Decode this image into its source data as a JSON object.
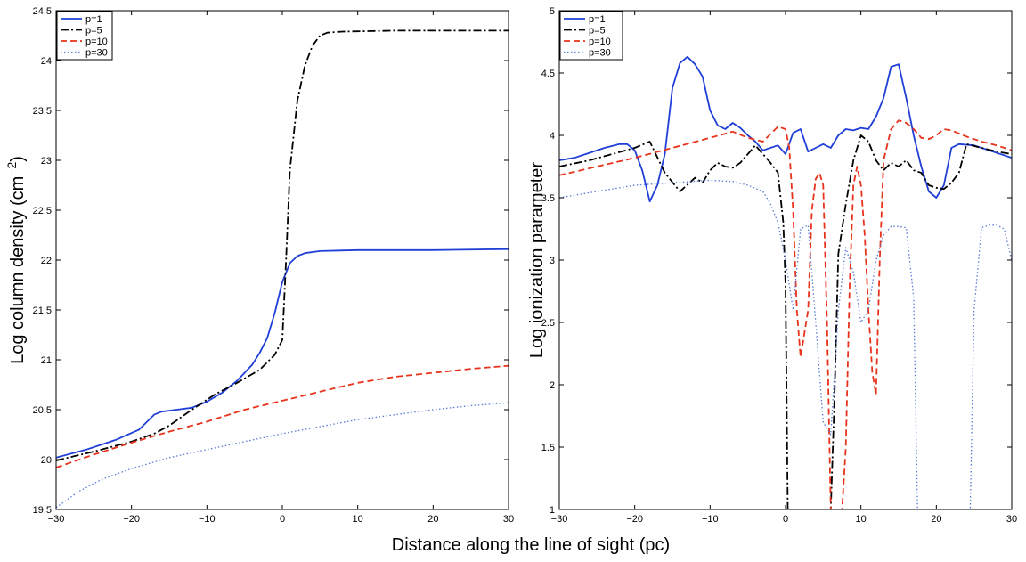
{
  "figure": {
    "xlabel": "Distance along the line of sight (pc)"
  },
  "chart_data": [
    {
      "type": "line",
      "ylabel_main": "Log column density (cm",
      "ylabel_sup": "−2",
      "ylabel_close": ")",
      "xlim": [
        -30,
        30
      ],
      "ylim": [
        19.5,
        24.5
      ],
      "xticks": [
        -30,
        -20,
        -10,
        0,
        10,
        20,
        30
      ],
      "xtick_labels": [
        "−30",
        "−20",
        "−10",
        "0",
        "10",
        "20",
        "30"
      ],
      "yticks": [
        19.5,
        20,
        20.5,
        21,
        21.5,
        22,
        22.5,
        23,
        23.5,
        24,
        24.5
      ],
      "ytick_labels": [
        "19.5",
        "20",
        "20.5",
        "21",
        "21.5",
        "22",
        "22.5",
        "23",
        "23.5",
        "24",
        "24.5"
      ],
      "legend_position": "top-left",
      "series": [
        {
          "name": "p=1",
          "color": "#1f3fd6",
          "dash": "solid",
          "points": [
            [
              -30,
              20.02
            ],
            [
              -26,
              20.1
            ],
            [
              -22,
              20.2
            ],
            [
              -19,
              20.3
            ],
            [
              -17,
              20.45
            ],
            [
              -16,
              20.48
            ],
            [
              -14,
              20.5
            ],
            [
              -12,
              20.52
            ],
            [
              -10,
              20.58
            ],
            [
              -8,
              20.67
            ],
            [
              -6,
              20.79
            ],
            [
              -4,
              20.95
            ],
            [
              -3,
              21.07
            ],
            [
              -2,
              21.22
            ],
            [
              -1,
              21.47
            ],
            [
              0,
              21.78
            ],
            [
              1,
              21.97
            ],
            [
              2,
              22.04
            ],
            [
              3,
              22.07
            ],
            [
              5,
              22.09
            ],
            [
              10,
              22.1
            ],
            [
              20,
              22.1
            ],
            [
              30,
              22.11
            ]
          ]
        },
        {
          "name": "p=5",
          "color": "#000000",
          "dash": "dashdot",
          "points": [
            [
              -30,
              19.99
            ],
            [
              -25,
              20.08
            ],
            [
              -20,
              20.18
            ],
            [
              -17,
              20.26
            ],
            [
              -15,
              20.34
            ],
            [
              -12,
              20.5
            ],
            [
              -9,
              20.65
            ],
            [
              -6,
              20.77
            ],
            [
              -3,
              20.9
            ],
            [
              -1,
              21.05
            ],
            [
              0,
              21.2
            ],
            [
              0.5,
              22.0
            ],
            [
              1,
              22.9
            ],
            [
              2,
              23.6
            ],
            [
              3,
              23.95
            ],
            [
              4,
              24.15
            ],
            [
              5,
              24.25
            ],
            [
              6,
              24.28
            ],
            [
              8,
              24.29
            ],
            [
              15,
              24.3
            ],
            [
              30,
              24.3
            ]
          ]
        },
        {
          "name": "p=10",
          "color": "#e8331c",
          "dash": "dashed",
          "points": [
            [
              -30,
              19.92
            ],
            [
              -25,
              20.05
            ],
            [
              -20,
              20.17
            ],
            [
              -15,
              20.28
            ],
            [
              -10,
              20.38
            ],
            [
              -5,
              20.5
            ],
            [
              0,
              20.59
            ],
            [
              5,
              20.68
            ],
            [
              10,
              20.77
            ],
            [
              15,
              20.83
            ],
            [
              20,
              20.87
            ],
            [
              25,
              20.91
            ],
            [
              30,
              20.94
            ]
          ]
        },
        {
          "name": "p=30",
          "color": "#5a7bd8",
          "dash": "dotted",
          "points": [
            [
              -30,
              19.52
            ],
            [
              -27,
              19.68
            ],
            [
              -24,
              19.8
            ],
            [
              -20,
              19.91
            ],
            [
              -15,
              20.02
            ],
            [
              -10,
              20.1
            ],
            [
              -5,
              20.18
            ],
            [
              0,
              20.26
            ],
            [
              5,
              20.33
            ],
            [
              10,
              20.4
            ],
            [
              15,
              20.45
            ],
            [
              20,
              20.5
            ],
            [
              25,
              20.54
            ],
            [
              30,
              20.57
            ]
          ]
        }
      ]
    },
    {
      "type": "line",
      "ylabel": "Log ionization parameter",
      "xlim": [
        -30,
        30
      ],
      "ylim": [
        1,
        5
      ],
      "xticks": [
        -30,
        -20,
        -10,
        0,
        10,
        20,
        30
      ],
      "xtick_labels": [
        "−30",
        "−20",
        "−10",
        "0",
        "10",
        "20",
        "30"
      ],
      "yticks": [
        1,
        1.5,
        2,
        2.5,
        3,
        3.5,
        4,
        4.5,
        5
      ],
      "ytick_labels": [
        "1",
        "1.5",
        "2",
        "2.5",
        "3",
        "3.5",
        "4",
        "4.5",
        "5"
      ],
      "legend_position": "top-left",
      "series": [
        {
          "name": "p=1",
          "color": "#1f3fd6",
          "dash": "solid",
          "points": [
            [
              -30,
              3.8
            ],
            [
              -28,
              3.82
            ],
            [
              -26,
              3.86
            ],
            [
              -24,
              3.9
            ],
            [
              -22,
              3.93
            ],
            [
              -21,
              3.93
            ],
            [
              -20,
              3.88
            ],
            [
              -19,
              3.72
            ],
            [
              -18,
              3.47
            ],
            [
              -17,
              3.6
            ],
            [
              -16,
              3.85
            ],
            [
              -15,
              4.38
            ],
            [
              -14,
              4.58
            ],
            [
              -13,
              4.63
            ],
            [
              -12,
              4.57
            ],
            [
              -11,
              4.47
            ],
            [
              -10,
              4.2
            ],
            [
              -9,
              4.08
            ],
            [
              -8,
              4.05
            ],
            [
              -7,
              4.1
            ],
            [
              -6,
              4.06
            ],
            [
              -5,
              4.0
            ],
            [
              -4,
              3.95
            ],
            [
              -3,
              3.88
            ],
            [
              -2,
              3.9
            ],
            [
              -1,
              3.92
            ],
            [
              0,
              3.85
            ],
            [
              1,
              4.02
            ],
            [
              2,
              4.05
            ],
            [
              3,
              3.87
            ],
            [
              4,
              3.9
            ],
            [
              5,
              3.93
            ],
            [
              6,
              3.9
            ],
            [
              7,
              4.0
            ],
            [
              8,
              4.05
            ],
            [
              9,
              4.04
            ],
            [
              10,
              4.06
            ],
            [
              11,
              4.05
            ],
            [
              12,
              4.15
            ],
            [
              13,
              4.3
            ],
            [
              14,
              4.55
            ],
            [
              15,
              4.57
            ],
            [
              16,
              4.3
            ],
            [
              17,
              4.0
            ],
            [
              18,
              3.75
            ],
            [
              19,
              3.55
            ],
            [
              20,
              3.5
            ],
            [
              21,
              3.6
            ],
            [
              22,
              3.9
            ],
            [
              23,
              3.93
            ],
            [
              25,
              3.92
            ],
            [
              27,
              3.88
            ],
            [
              30,
              3.82
            ]
          ]
        },
        {
          "name": "p=5",
          "color": "#000000",
          "dash": "dashdot",
          "points": [
            [
              -30,
              3.75
            ],
            [
              -26,
              3.8
            ],
            [
              -23,
              3.85
            ],
            [
              -20,
              3.9
            ],
            [
              -18,
              3.95
            ],
            [
              -16,
              3.7
            ],
            [
              -14,
              3.55
            ],
            [
              -12,
              3.66
            ],
            [
              -11,
              3.62
            ],
            [
              -10,
              3.72
            ],
            [
              -9,
              3.78
            ],
            [
              -8,
              3.75
            ],
            [
              -7,
              3.74
            ],
            [
              -6,
              3.78
            ],
            [
              -5,
              3.85
            ],
            [
              -4,
              3.92
            ],
            [
              -3,
              3.85
            ],
            [
              -2,
              3.78
            ],
            [
              -1,
              3.7
            ],
            [
              -0.3,
              3.3
            ],
            [
              0,
              2.8
            ],
            [
              0.3,
              1.0
            ],
            [
              6,
              1.0
            ],
            [
              6.5,
              1.9
            ],
            [
              7,
              3.05
            ],
            [
              8,
              3.45
            ],
            [
              9,
              3.8
            ],
            [
              10,
              4.0
            ],
            [
              11,
              3.95
            ],
            [
              12,
              3.8
            ],
            [
              13,
              3.72
            ],
            [
              14,
              3.78
            ],
            [
              15,
              3.75
            ],
            [
              16,
              3.8
            ],
            [
              17,
              3.72
            ],
            [
              18,
              3.7
            ],
            [
              19,
              3.6
            ],
            [
              20,
              3.58
            ],
            [
              21,
              3.57
            ],
            [
              22,
              3.62
            ],
            [
              23,
              3.7
            ],
            [
              24,
              3.93
            ],
            [
              26,
              3.9
            ],
            [
              28,
              3.87
            ],
            [
              30,
              3.85
            ]
          ]
        },
        {
          "name": "p=10",
          "color": "#e8331c",
          "dash": "dashed",
          "points": [
            [
              -30,
              3.68
            ],
            [
              -25,
              3.75
            ],
            [
              -20,
              3.82
            ],
            [
              -15,
              3.9
            ],
            [
              -10,
              3.98
            ],
            [
              -7,
              4.03
            ],
            [
              -5,
              3.98
            ],
            [
              -3,
              3.95
            ],
            [
              -1,
              4.07
            ],
            [
              0,
              4.05
            ],
            [
              0.5,
              3.9
            ],
            [
              1,
              3.4
            ],
            [
              1.5,
              2.6
            ],
            [
              2,
              2.22
            ],
            [
              3,
              2.6
            ],
            [
              3.5,
              3.4
            ],
            [
              4,
              3.65
            ],
            [
              4.5,
              3.7
            ],
            [
              5,
              3.6
            ],
            [
              5.5,
              2.5
            ],
            [
              6,
              1.0
            ],
            [
              7.5,
              1.0
            ],
            [
              8,
              1.5
            ],
            [
              8.5,
              2.8
            ],
            [
              9,
              3.6
            ],
            [
              9.5,
              3.75
            ],
            [
              10,
              3.6
            ],
            [
              10.5,
              3.2
            ],
            [
              11,
              2.6
            ],
            [
              11.5,
              2.1
            ],
            [
              12,
              1.92
            ],
            [
              12.5,
              3.0
            ],
            [
              13,
              3.8
            ],
            [
              14,
              4.05
            ],
            [
              15,
              4.12
            ],
            [
              16,
              4.1
            ],
            [
              17,
              4.05
            ],
            [
              18,
              3.98
            ],
            [
              19,
              3.97
            ],
            [
              20,
              4.0
            ],
            [
              21,
              4.05
            ],
            [
              22,
              4.04
            ],
            [
              24,
              3.99
            ],
            [
              26,
              3.95
            ],
            [
              28,
              3.92
            ],
            [
              30,
              3.88
            ]
          ]
        },
        {
          "name": "p=30",
          "color": "#5a7bd8",
          "dash": "dotted",
          "points": [
            [
              -30,
              3.5
            ],
            [
              -25,
              3.55
            ],
            [
              -20,
              3.6
            ],
            [
              -15,
              3.62
            ],
            [
              -10,
              3.64
            ],
            [
              -7,
              3.63
            ],
            [
              -5,
              3.6
            ],
            [
              -3,
              3.55
            ],
            [
              -2,
              3.45
            ],
            [
              -1,
              3.3
            ],
            [
              0,
              3.0
            ],
            [
              1,
              2.6
            ],
            [
              2,
              3.25
            ],
            [
              3,
              3.28
            ],
            [
              4,
              2.5
            ],
            [
              5,
              1.7
            ],
            [
              6,
              1.6
            ],
            [
              7,
              2.6
            ],
            [
              8,
              3.1
            ],
            [
              9,
              2.9
            ],
            [
              10,
              2.5
            ],
            [
              11,
              2.6
            ],
            [
              12,
              3.0
            ],
            [
              13,
              3.2
            ],
            [
              14,
              3.27
            ],
            [
              15,
              3.27
            ],
            [
              16,
              3.26
            ],
            [
              17,
              2.7
            ],
            [
              17.5,
              1.0
            ],
            [
              24.5,
              1.0
            ],
            [
              25,
              2.6
            ],
            [
              26,
              3.26
            ],
            [
              27,
              3.28
            ],
            [
              28,
              3.28
            ],
            [
              29,
              3.25
            ],
            [
              30,
              3.0
            ]
          ]
        }
      ]
    }
  ]
}
